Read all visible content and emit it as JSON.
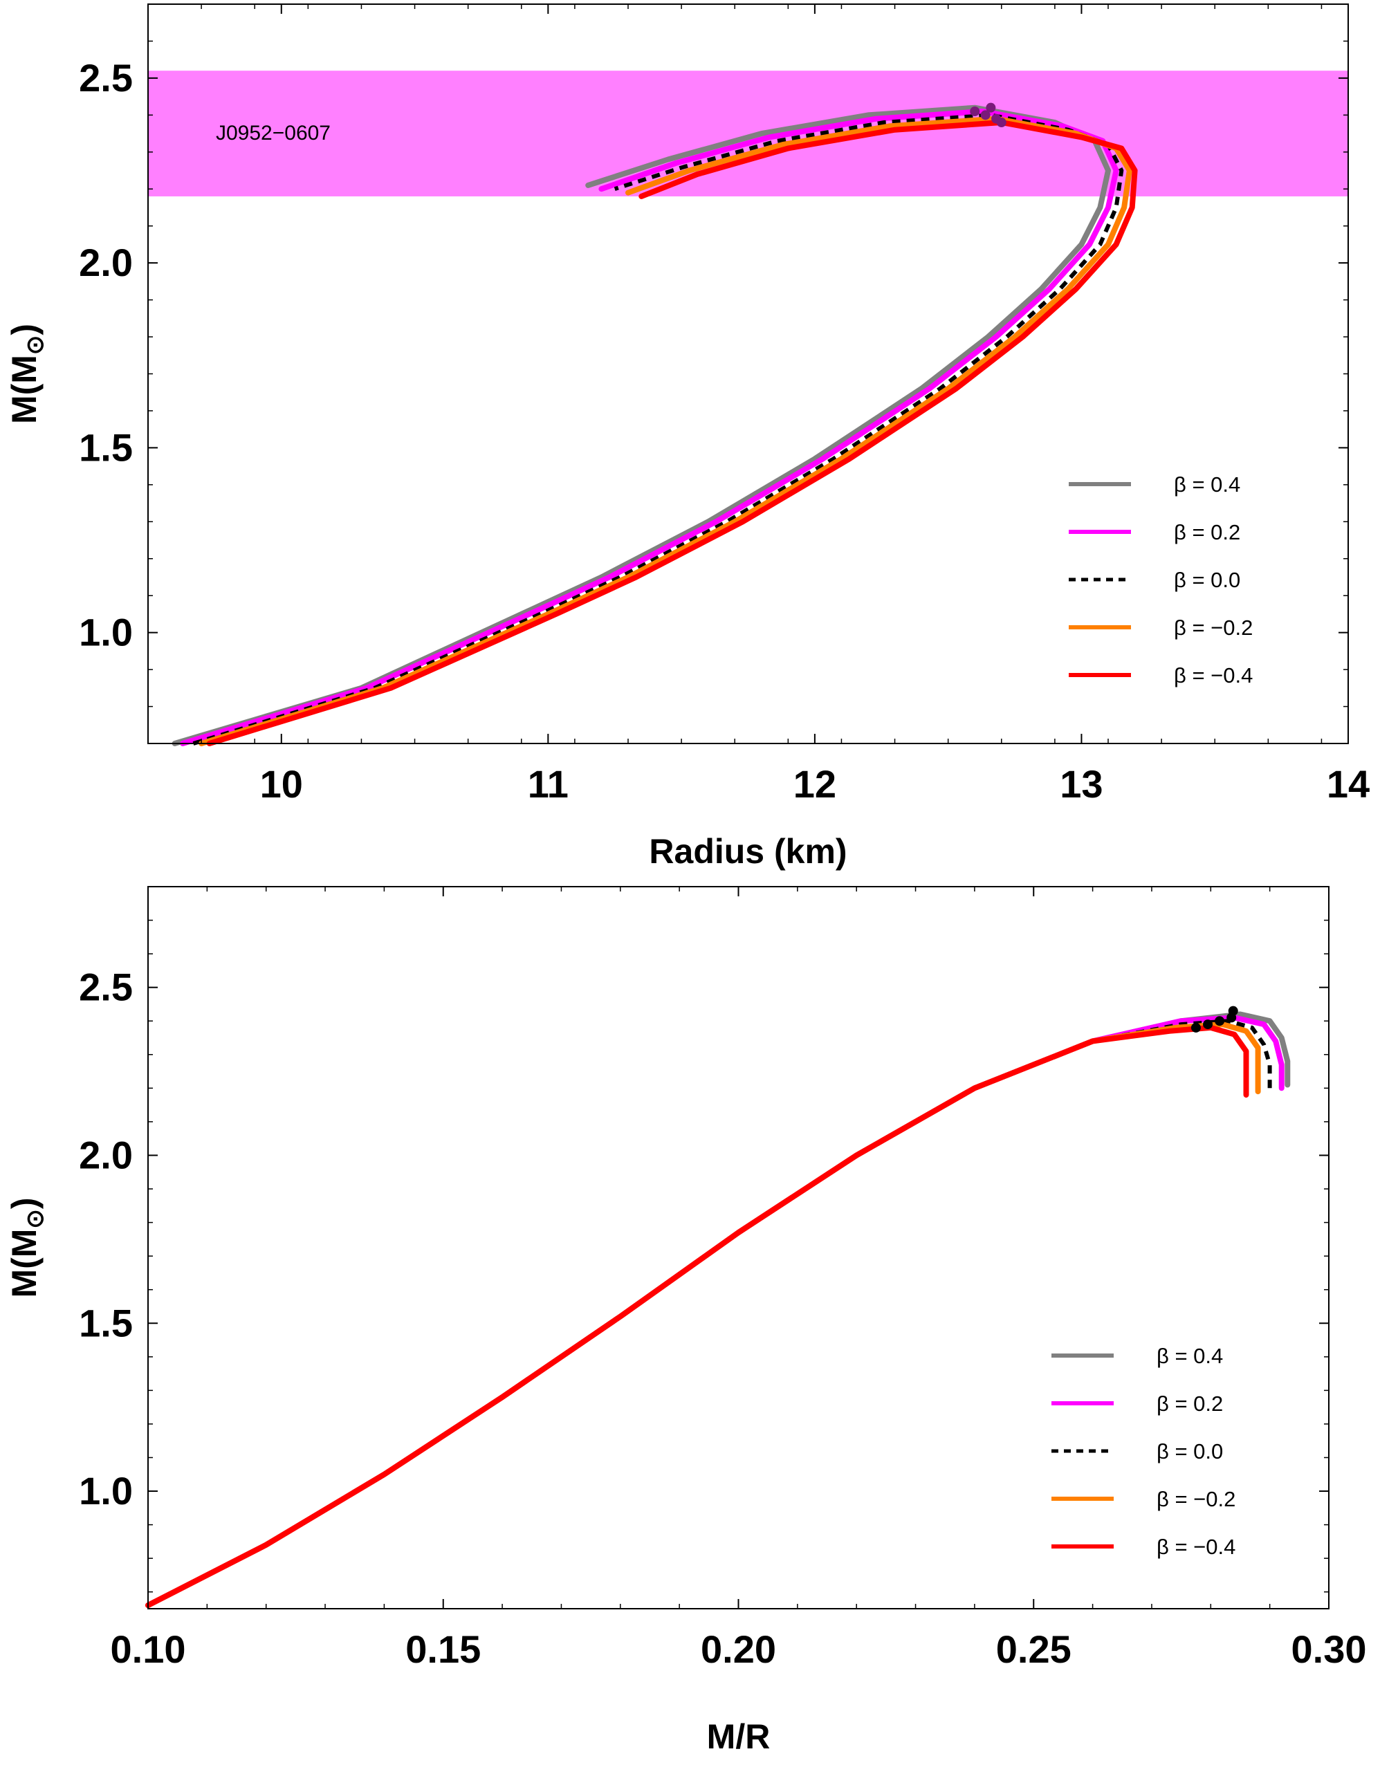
{
  "chart_data": [
    {
      "type": "line",
      "xlabel": "Radius (km)",
      "ylabel": "M(M",
      "ylabel_sub": "⊙",
      "ylabel_close": ")",
      "xlim": [
        9.5,
        14
      ],
      "ylim": [
        0.7,
        2.7
      ],
      "xticks": [
        10,
        11,
        12,
        13,
        14
      ],
      "yticks": [
        1.0,
        1.5,
        2.0,
        2.5
      ],
      "band": {
        "label": "J0952−0607",
        "y_range": [
          2.18,
          2.52
        ],
        "color": "#ff80ff"
      },
      "series": [
        {
          "name": "β = 0.4",
          "color": "#808080",
          "dash": false,
          "x": [
            9.6,
            10.3,
            10.9,
            11.2,
            11.6,
            12.0,
            12.4,
            12.65,
            12.85,
            13.0,
            13.07,
            13.1,
            13.05,
            12.9,
            12.6,
            12.2,
            11.8,
            11.45,
            11.15
          ],
          "y": [
            0.7,
            0.85,
            1.05,
            1.15,
            1.3,
            1.47,
            1.66,
            1.8,
            1.93,
            2.05,
            2.15,
            2.25,
            2.33,
            2.38,
            2.42,
            2.4,
            2.35,
            2.28,
            2.21
          ]
        },
        {
          "name": "β = 0.2",
          "color": "#ff00ff",
          "dash": false,
          "x": [
            9.63,
            10.32,
            10.93,
            11.23,
            11.63,
            12.03,
            12.43,
            12.68,
            12.88,
            13.03,
            13.1,
            13.13,
            13.08,
            12.93,
            12.63,
            12.23,
            11.83,
            11.48,
            11.2
          ],
          "y": [
            0.7,
            0.85,
            1.05,
            1.15,
            1.3,
            1.47,
            1.66,
            1.8,
            1.93,
            2.05,
            2.15,
            2.25,
            2.33,
            2.37,
            2.41,
            2.39,
            2.34,
            2.27,
            2.2
          ]
        },
        {
          "name": "β = 0.0",
          "color": "#000000",
          "dash": true,
          "x": [
            9.67,
            10.35,
            10.97,
            11.27,
            11.67,
            12.07,
            12.47,
            12.72,
            12.92,
            13.07,
            13.13,
            13.15,
            13.1,
            12.95,
            12.66,
            12.26,
            11.86,
            11.51,
            11.25
          ],
          "y": [
            0.7,
            0.85,
            1.05,
            1.15,
            1.3,
            1.47,
            1.66,
            1.8,
            1.93,
            2.05,
            2.15,
            2.25,
            2.32,
            2.36,
            2.4,
            2.38,
            2.33,
            2.26,
            2.2
          ]
        },
        {
          "name": "β = −0.2",
          "color": "#ff8000",
          "dash": false,
          "x": [
            9.7,
            10.38,
            11.0,
            11.3,
            11.7,
            12.1,
            12.5,
            12.75,
            12.95,
            13.1,
            13.16,
            13.18,
            13.13,
            12.98,
            12.68,
            12.28,
            11.88,
            11.53,
            11.3
          ],
          "y": [
            0.7,
            0.85,
            1.05,
            1.15,
            1.3,
            1.47,
            1.66,
            1.8,
            1.93,
            2.05,
            2.15,
            2.25,
            2.31,
            2.35,
            2.39,
            2.37,
            2.32,
            2.25,
            2.19
          ]
        },
        {
          "name": "β = −0.4",
          "color": "#ff0000",
          "dash": false,
          "x": [
            9.73,
            10.41,
            11.03,
            11.33,
            11.73,
            12.13,
            12.53,
            12.78,
            12.98,
            13.13,
            13.19,
            13.2,
            13.15,
            13.0,
            12.7,
            12.3,
            11.9,
            11.56,
            11.35
          ],
          "y": [
            0.7,
            0.85,
            1.05,
            1.15,
            1.3,
            1.47,
            1.66,
            1.8,
            1.93,
            2.05,
            2.15,
            2.25,
            2.31,
            2.34,
            2.38,
            2.36,
            2.31,
            2.24,
            2.18
          ]
        }
      ],
      "max_points": [
        {
          "x": 12.6,
          "y": 2.41
        },
        {
          "x": 12.64,
          "y": 2.4
        },
        {
          "x": 12.66,
          "y": 2.42
        },
        {
          "x": 12.68,
          "y": 2.39
        },
        {
          "x": 12.7,
          "y": 2.38
        }
      ],
      "legend_position": "right"
    },
    {
      "type": "line",
      "xlabel": "M/R",
      "ylabel": "M(M",
      "ylabel_sub": "⊙",
      "ylabel_close": ")",
      "xlim": [
        0.1,
        0.3
      ],
      "ylim": [
        0.65,
        2.8
      ],
      "xticks": [
        "0.10",
        "0.15",
        "0.20",
        "0.25",
        "0.30"
      ],
      "xtick_values": [
        0.1,
        0.15,
        0.2,
        0.25,
        0.3
      ],
      "yticks": [
        1.0,
        1.5,
        2.0,
        2.5
      ],
      "series": [
        {
          "name": "β = 0.4",
          "color": "#808080",
          "dash": false,
          "x": [
            0.1,
            0.12,
            0.14,
            0.16,
            0.18,
            0.2,
            0.22,
            0.24,
            0.26,
            0.275,
            0.285,
            0.29,
            0.292,
            0.293,
            0.293
          ],
          "y": [
            0.66,
            0.84,
            1.05,
            1.28,
            1.52,
            1.77,
            2.0,
            2.2,
            2.34,
            2.4,
            2.42,
            2.4,
            2.35,
            2.28,
            2.21
          ]
        },
        {
          "name": "β = 0.2",
          "color": "#ff00ff",
          "dash": false,
          "x": [
            0.1,
            0.12,
            0.14,
            0.16,
            0.18,
            0.2,
            0.22,
            0.24,
            0.26,
            0.275,
            0.284,
            0.289,
            0.291,
            0.292,
            0.292
          ],
          "y": [
            0.66,
            0.84,
            1.05,
            1.28,
            1.52,
            1.77,
            2.0,
            2.2,
            2.34,
            2.4,
            2.41,
            2.39,
            2.34,
            2.27,
            2.2
          ]
        },
        {
          "name": "β = 0.0",
          "color": "#000000",
          "dash": true,
          "x": [
            0.1,
            0.12,
            0.14,
            0.16,
            0.18,
            0.2,
            0.22,
            0.24,
            0.26,
            0.275,
            0.283,
            0.287,
            0.289,
            0.29,
            0.29
          ],
          "y": [
            0.66,
            0.84,
            1.05,
            1.28,
            1.52,
            1.77,
            2.0,
            2.2,
            2.34,
            2.39,
            2.4,
            2.38,
            2.33,
            2.27,
            2.2
          ]
        },
        {
          "name": "β = −0.2",
          "color": "#ff8000",
          "dash": false,
          "x": [
            0.1,
            0.12,
            0.14,
            0.16,
            0.18,
            0.2,
            0.22,
            0.24,
            0.26,
            0.274,
            0.282,
            0.286,
            0.288,
            0.288,
            0.288
          ],
          "y": [
            0.66,
            0.84,
            1.05,
            1.28,
            1.52,
            1.77,
            2.0,
            2.2,
            2.34,
            2.38,
            2.39,
            2.37,
            2.32,
            2.26,
            2.19
          ]
        },
        {
          "name": "β = −0.4",
          "color": "#ff0000",
          "dash": false,
          "x": [
            0.1,
            0.12,
            0.14,
            0.16,
            0.18,
            0.2,
            0.22,
            0.24,
            0.26,
            0.273,
            0.28,
            0.284,
            0.286,
            0.286,
            0.286
          ],
          "y": [
            0.66,
            0.84,
            1.05,
            1.28,
            1.52,
            1.77,
            2.0,
            2.2,
            2.34,
            2.37,
            2.38,
            2.36,
            2.31,
            2.25,
            2.18
          ]
        }
      ],
      "max_points": [
        {
          "x": 0.2775,
          "y": 2.38
        },
        {
          "x": 0.2795,
          "y": 2.39
        },
        {
          "x": 0.2815,
          "y": 2.4
        },
        {
          "x": 0.2835,
          "y": 2.41
        },
        {
          "x": 0.2838,
          "y": 2.43
        }
      ],
      "legend_position": "right"
    }
  ]
}
